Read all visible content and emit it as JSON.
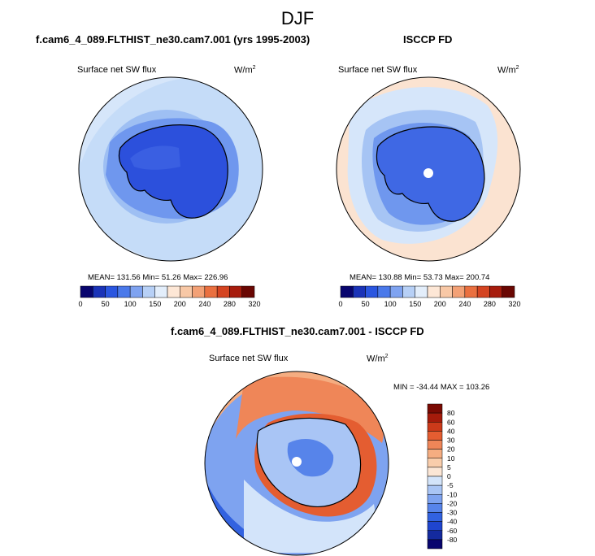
{
  "page": {
    "title": "DJF",
    "diff_title": "f.cam6_4_089.FLTHIST_ne30.cam7.001 - ISCCP FD"
  },
  "colors": {
    "abs_palette": [
      "#08056e",
      "#1a33b8",
      "#2a56e0",
      "#4a79ea",
      "#7fa3f0",
      "#b7d0f6",
      "#e3eefb",
      "#fde7d6",
      "#f8c8a6",
      "#f3a176",
      "#ea7040",
      "#d44421",
      "#a71c0d",
      "#6a0703"
    ],
    "diff_palette": [
      "#08056e",
      "#142a9e",
      "#1f45cf",
      "#3262e0",
      "#5784ea",
      "#7ea3f0",
      "#a9c5f5",
      "#d3e4fa",
      "#fbe6d5",
      "#f9cdab",
      "#f5ad81",
      "#ef8658",
      "#e45d31",
      "#cc3a1a",
      "#a51b0b",
      "#7a0a03"
    ],
    "land_outline": "#000000"
  },
  "chart_data": [
    {
      "type": "heatmap",
      "projection": "south-polar-stereographic",
      "panel_title": "f.cam6_4_089.FLTHIST_ne30.cam7.001 (yrs 1995-2003)",
      "variable": "Surface net SW flux",
      "units": "W/m",
      "units_sup": "2",
      "stats": {
        "mean": 131.56,
        "min": 51.26,
        "max": 226.96
      },
      "stats_text": "MEAN= 131.56  Min=  51.26  Max= 226.96",
      "colorbar_levels": [
        0,
        25,
        50,
        75,
        100,
        125,
        150,
        175,
        200,
        220,
        240,
        260,
        280,
        300,
        320
      ],
      "colorbar_ticks": [
        "0",
        "50",
        "100",
        "150",
        "200",
        "240",
        "280",
        "320"
      ]
    },
    {
      "type": "heatmap",
      "projection": "south-polar-stereographic",
      "panel_title": "ISCCP FD",
      "variable": "Surface net SW flux",
      "units": "W/m",
      "units_sup": "2",
      "stats": {
        "mean": 130.88,
        "min": 53.73,
        "max": 200.74
      },
      "stats_text": "MEAN= 130.88  Min=  53.73  Max= 200.74",
      "colorbar_levels": [
        0,
        25,
        50,
        75,
        100,
        125,
        150,
        175,
        200,
        220,
        240,
        260,
        280,
        300,
        320
      ],
      "colorbar_ticks": [
        "0",
        "50",
        "100",
        "150",
        "200",
        "240",
        "280",
        "320"
      ]
    },
    {
      "type": "heatmap",
      "projection": "south-polar-stereographic",
      "panel_title": "f.cam6_4_089.FLTHIST_ne30.cam7.001 - ISCCP FD",
      "variable": "Surface net SW flux",
      "units": "W/m",
      "units_sup": "2",
      "stats": {
        "min": -34.44,
        "max": 103.26
      },
      "stats_text": "MIN = -34.44 MAX = 103.26",
      "colorbar_levels": [
        "80",
        "60",
        "40",
        "30",
        "20",
        "10",
        "5",
        "0",
        "-5",
        "-10",
        "-20",
        "-30",
        "-40",
        "-60",
        "-80"
      ]
    }
  ]
}
